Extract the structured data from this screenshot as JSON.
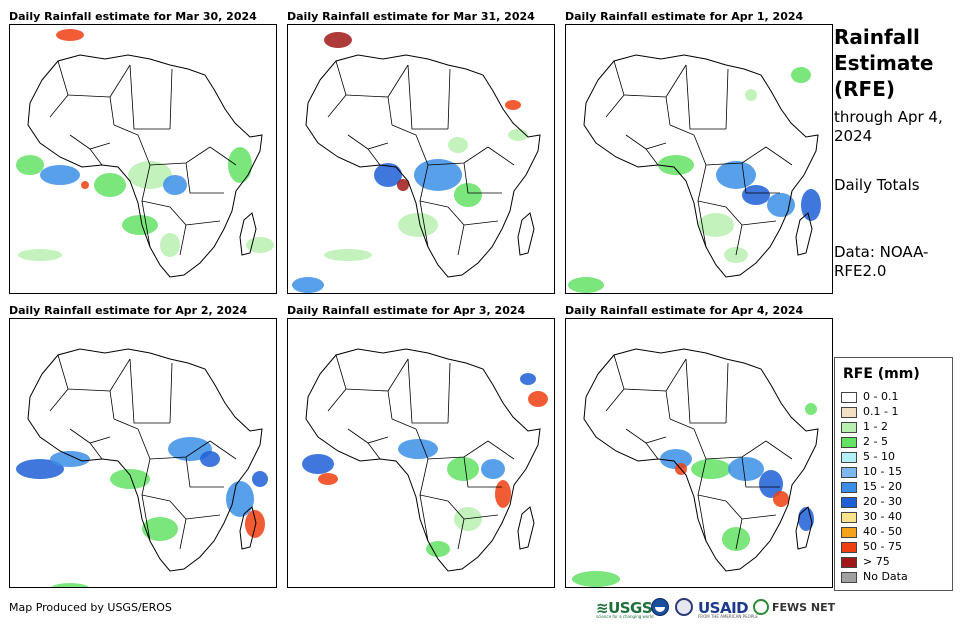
{
  "panels": [
    {
      "title": "Daily Rainfall estimate for Mar 30, 2024"
    },
    {
      "title": "Daily Rainfall estimate for Mar 31, 2024"
    },
    {
      "title": "Daily Rainfall estimate for Apr 1, 2024"
    },
    {
      "title": "Daily Rainfall estimate for Apr 2, 2024"
    },
    {
      "title": "Daily Rainfall estimate for Apr 3, 2024"
    },
    {
      "title": "Daily Rainfall estimate for Apr 4, 2024"
    }
  ],
  "side": {
    "title": "Rainfall Estimate (RFE)",
    "through": "through Apr 4, 2024",
    "period": "Daily Totals",
    "data_source": "Data: NOAA-RFE2.0"
  },
  "legend": {
    "title": "RFE (mm)",
    "items": [
      {
        "label": "0 - 0.1",
        "color": "#ffffff"
      },
      {
        "label": "0.1 - 1",
        "color": "#f2dfc4"
      },
      {
        "label": "1 - 2",
        "color": "#b8f0b0"
      },
      {
        "label": "2 - 5",
        "color": "#64e264"
      },
      {
        "label": "5 - 10",
        "color": "#b4f0f8"
      },
      {
        "label": "10 - 15",
        "color": "#7db8f2"
      },
      {
        "label": "15 - 20",
        "color": "#3c8fe8"
      },
      {
        "label": "20 - 30",
        "color": "#1f5fd6"
      },
      {
        "label": "30 - 40",
        "color": "#f9e28c"
      },
      {
        "label": "40 - 50",
        "color": "#f5a21b"
      },
      {
        "label": "50 - 75",
        "color": "#ee4010"
      },
      {
        "label": "> 75",
        "color": "#a01818"
      },
      {
        "label": "No Data",
        "color": "#a0a0a0"
      }
    ]
  },
  "credit": "Map Produced by USGS/EROS",
  "logos": {
    "usgs": "≋USGS",
    "usgs_tagline": "science for a changing world",
    "noaa_icon": "noaa-logo",
    "doc_icon": "commerce-seal",
    "usaid": "USAID",
    "usaid_tagline": "FROM THE AMERICAN PEOPLE",
    "fews": "FEWS NET"
  }
}
